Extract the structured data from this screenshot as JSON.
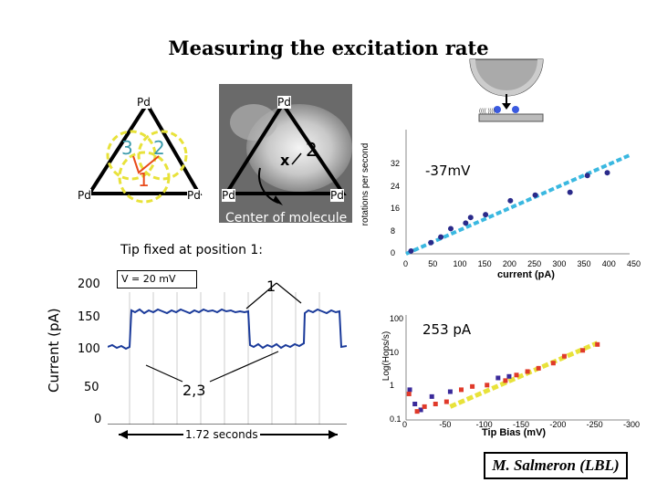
{
  "title": "Measuring the excitation rate",
  "credit": "M. Salmeron (LBL)",
  "stm_panel": {
    "pd_labels": [
      "Pd",
      "Pd",
      "Pd",
      "Pd",
      "Pd",
      "Pd"
    ],
    "positions": [
      "3",
      "2",
      "1",
      "2"
    ],
    "x_mark": "x",
    "center_label": "Center of molecule"
  },
  "tip_caption": "Tip fixed at position 1:",
  "current_trace": {
    "ylabel": "Current (pA)",
    "voltage_label": "V = 20 mV",
    "yticks": [
      "200",
      "150",
      "100",
      "50",
      "0"
    ],
    "level_high": "1",
    "level_low": "2,3",
    "duration": "1.72 seconds"
  },
  "chart_data": [
    {
      "type": "scatter",
      "ylabel": "rotations per second",
      "xlabel": "current (pA)",
      "annotation": "-37mV",
      "xticks": [
        "0",
        "50",
        "100",
        "150",
        "200",
        "250",
        "300",
        "350",
        "400",
        "450"
      ],
      "yticks": [
        "0",
        "8",
        "16",
        "24",
        "32"
      ],
      "xlim": [
        0,
        450
      ],
      "ylim": [
        0,
        32
      ],
      "points": [
        {
          "x": 10,
          "y": 1
        },
        {
          "x": 50,
          "y": 4
        },
        {
          "x": 70,
          "y": 6
        },
        {
          "x": 90,
          "y": 9
        },
        {
          "x": 120,
          "y": 11
        },
        {
          "x": 130,
          "y": 13
        },
        {
          "x": 160,
          "y": 14
        },
        {
          "x": 210,
          "y": 19
        },
        {
          "x": 260,
          "y": 21
        },
        {
          "x": 330,
          "y": 22
        },
        {
          "x": 365,
          "y": 28
        },
        {
          "x": 405,
          "y": 29
        }
      ],
      "fit": {
        "x": [
          0,
          450
        ],
        "y": [
          0,
          32
        ]
      }
    },
    {
      "type": "scatter",
      "ylabel": "Log(Hops/s)",
      "xlabel": "Tip Bias (mV)",
      "annotation": "253 pA",
      "xticks": [
        "0",
        "-50",
        "-100",
        "-150",
        "-200",
        "-250",
        "-300"
      ],
      "yticks": [
        "100",
        "10",
        "1",
        "0.1"
      ],
      "xlim": [
        0,
        -300
      ],
      "ylim": [
        0.1,
        100
      ],
      "scale": "log",
      "series": [
        {
          "color": "#3a2a9a",
          "points": [
            {
              "x": -5,
              "y": 0.8
            },
            {
              "x": -12,
              "y": 0.3
            },
            {
              "x": -20,
              "y": 0.2
            },
            {
              "x": -35,
              "y": 0.5
            },
            {
              "x": -60,
              "y": 0.7
            },
            {
              "x": -125,
              "y": 1.8
            },
            {
              "x": -140,
              "y": 2.0
            }
          ]
        },
        {
          "color": "#e03a2a",
          "points": [
            {
              "x": -4,
              "y": 0.6
            },
            {
              "x": -15,
              "y": 0.18
            },
            {
              "x": -25,
              "y": 0.25
            },
            {
              "x": -40,
              "y": 0.3
            },
            {
              "x": -55,
              "y": 0.35
            },
            {
              "x": -75,
              "y": 0.8
            },
            {
              "x": -90,
              "y": 1.0
            },
            {
              "x": -110,
              "y": 1.1
            },
            {
              "x": -135,
              "y": 1.5
            },
            {
              "x": -150,
              "y": 2.2
            },
            {
              "x": -165,
              "y": 2.8
            },
            {
              "x": -180,
              "y": 3.5
            },
            {
              "x": -200,
              "y": 5.0
            },
            {
              "x": -215,
              "y": 8.0
            },
            {
              "x": -240,
              "y": 12.0
            },
            {
              "x": -260,
              "y": 18.0
            }
          ]
        }
      ],
      "fit": {
        "x": [
          -60,
          -260
        ],
        "y": [
          0.25,
          20
        ]
      }
    }
  ]
}
